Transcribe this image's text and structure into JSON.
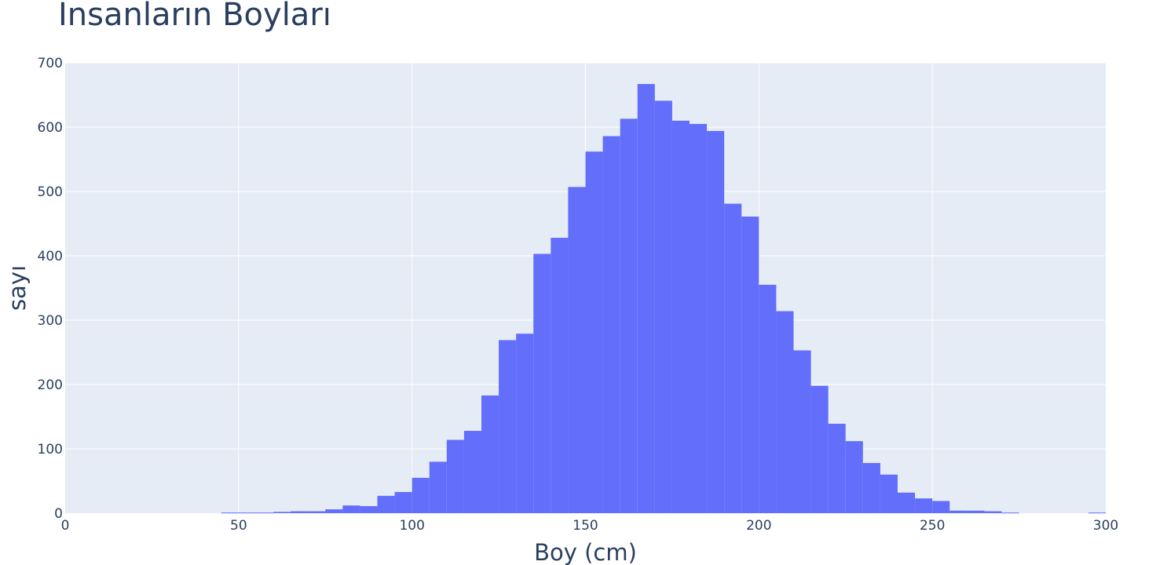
{
  "chart_data": {
    "type": "bar",
    "title": "İnsanların Boyları",
    "xlabel": "Boy (cm)",
    "ylabel": "sayı",
    "xlim": [
      0,
      300
    ],
    "ylim": [
      0,
      700
    ],
    "x_ticks": [
      0,
      50,
      100,
      150,
      200,
      250,
      300
    ],
    "y_ticks": [
      0,
      100,
      200,
      300,
      400,
      500,
      600,
      700
    ],
    "grid": true,
    "bar_color": "#636EFA",
    "plot_bg": "#E5ECF6",
    "bin_size": 5,
    "bin_starts": [
      45,
      50,
      55,
      60,
      65,
      70,
      75,
      80,
      85,
      90,
      95,
      100,
      105,
      110,
      115,
      120,
      125,
      130,
      135,
      140,
      145,
      150,
      155,
      160,
      165,
      170,
      175,
      180,
      185,
      190,
      195,
      200,
      205,
      210,
      215,
      220,
      225,
      230,
      235,
      240,
      245,
      250,
      255,
      260,
      265,
      270,
      295
    ],
    "values": [
      1,
      1,
      1,
      2,
      3,
      3,
      6,
      12,
      11,
      27,
      33,
      55,
      80,
      114,
      128,
      183,
      269,
      279,
      403,
      428,
      507,
      562,
      586,
      613,
      667,
      641,
      610,
      605,
      594,
      481,
      461,
      355,
      314,
      253,
      198,
      139,
      112,
      78,
      60,
      32,
      23,
      19,
      4,
      4,
      3,
      1,
      1
    ]
  }
}
